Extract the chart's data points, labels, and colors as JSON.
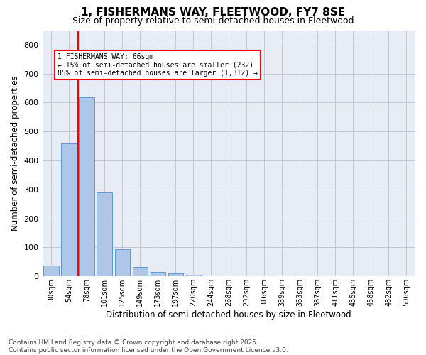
{
  "title": "1, FISHERMANS WAY, FLEETWOOD, FY7 8SE",
  "subtitle": "Size of property relative to semi-detached houses in Fleetwood",
  "xlabel": "Distribution of semi-detached houses by size in Fleetwood",
  "ylabel": "Number of semi-detached properties",
  "categories": [
    "30sqm",
    "54sqm",
    "78sqm",
    "101sqm",
    "125sqm",
    "149sqm",
    "173sqm",
    "197sqm",
    "220sqm",
    "244sqm",
    "268sqm",
    "292sqm",
    "316sqm",
    "339sqm",
    "363sqm",
    "387sqm",
    "411sqm",
    "435sqm",
    "458sqm",
    "482sqm",
    "506sqm"
  ],
  "values": [
    38,
    460,
    618,
    290,
    95,
    33,
    15,
    10,
    5,
    0,
    0,
    0,
    0,
    0,
    0,
    0,
    0,
    0,
    0,
    0,
    0
  ],
  "bar_color": "#aec6e8",
  "bar_edge_color": "#5b9bd5",
  "vline_x": 1.5,
  "vline_color": "red",
  "annotation_title": "1 FISHERMANS WAY: 66sqm",
  "annotation_line1": "← 15% of semi-detached houses are smaller (232)",
  "annotation_line2": "85% of semi-detached houses are larger (1,312) →",
  "annotation_box_color": "red",
  "ylim": [
    0,
    850
  ],
  "yticks": [
    0,
    100,
    200,
    300,
    400,
    500,
    600,
    700,
    800
  ],
  "grid_color": "#c0c8d8",
  "bg_color": "#e8edf5",
  "footer_line1": "Contains HM Land Registry data © Crown copyright and database right 2025.",
  "footer_line2": "Contains public sector information licensed under the Open Government Licence v3.0.",
  "title_fontsize": 11,
  "subtitle_fontsize": 9,
  "footer_fontsize": 6.5
}
